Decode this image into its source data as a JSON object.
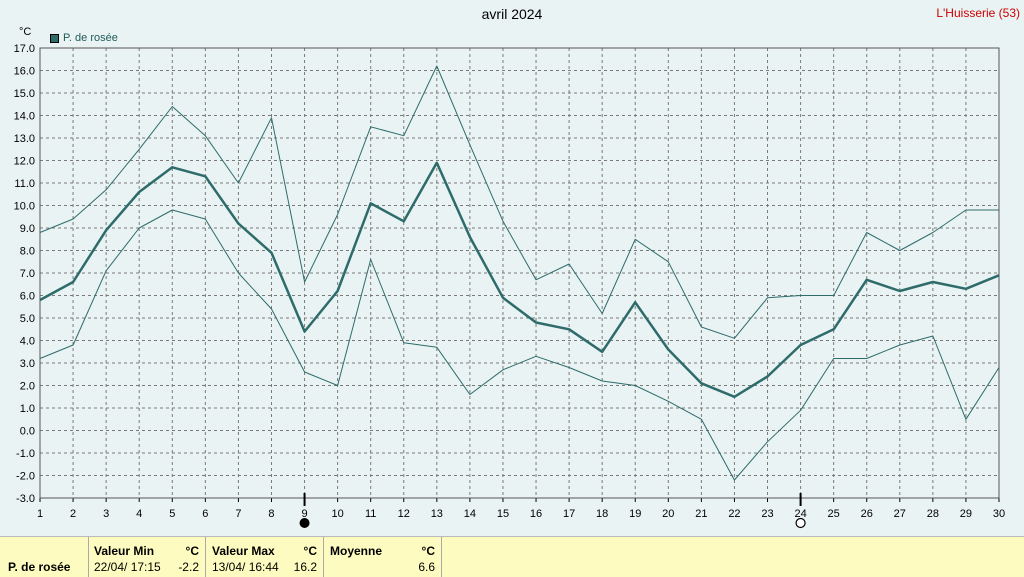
{
  "title": "avril 2024",
  "station": "L'Huisserie (53)",
  "unit": "°C",
  "legend_label": "P. de rosée",
  "colors": {
    "series": "#2e6b6b",
    "grid": "#7a7a7a",
    "background": "#eaf3f3",
    "footer": "#fdfbbf"
  },
  "markers": {
    "full_moon_day": 9,
    "new_moon_day": 24
  },
  "footer": {
    "row_label": "P. de rosée",
    "min_header": "Valeur Min",
    "min_unit": "°C",
    "min_date": "22/04/  17:15",
    "min_value": "-2.2",
    "max_header": "Valeur Max",
    "max_unit": "°C",
    "max_date": "13/04/  16:44",
    "max_value": "16.2",
    "mean_header": "Moyenne",
    "mean_unit": "°C",
    "mean_value": "6.6"
  },
  "chart_data": {
    "type": "line",
    "title": "avril 2024",
    "ylabel": "°C",
    "x": [
      1,
      2,
      3,
      4,
      5,
      6,
      7,
      8,
      9,
      10,
      11,
      12,
      13,
      14,
      15,
      16,
      17,
      18,
      19,
      20,
      21,
      22,
      23,
      24,
      25,
      26,
      27,
      28,
      29,
      30
    ],
    "ylim": [
      -3.0,
      17.0
    ],
    "yticks": [
      -3.0,
      -2.0,
      -1.0,
      0.0,
      1.0,
      2.0,
      3.0,
      4.0,
      5.0,
      6.0,
      7.0,
      8.0,
      9.0,
      10.0,
      11.0,
      12.0,
      13.0,
      14.0,
      15.0,
      16.0,
      17.0
    ],
    "grid": true,
    "legend_position": "top-left",
    "series": [
      {
        "name": "P. de rosée",
        "role": "max",
        "values": [
          8.8,
          9.4,
          10.7,
          12.5,
          14.4,
          13.1,
          11.0,
          13.9,
          6.6,
          9.6,
          13.5,
          13.1,
          16.2,
          12.7,
          9.3,
          6.7,
          7.4,
          5.2,
          8.5,
          7.5,
          4.6,
          4.1,
          5.9,
          6.0,
          6.0,
          8.8,
          8.0,
          8.8,
          9.8,
          9.8
        ]
      },
      {
        "name": "P. de rosée",
        "role": "mean",
        "values": [
          5.8,
          6.6,
          8.9,
          10.6,
          11.7,
          11.3,
          9.2,
          7.9,
          4.4,
          6.2,
          10.1,
          9.3,
          11.9,
          8.6,
          5.9,
          4.8,
          4.5,
          3.5,
          5.7,
          3.6,
          2.1,
          1.5,
          2.4,
          3.8,
          4.5,
          6.7,
          6.2,
          6.6,
          6.3,
          6.9
        ]
      },
      {
        "name": "P. de rosée",
        "role": "min",
        "values": [
          3.2,
          3.8,
          7.1,
          9.0,
          9.8,
          9.4,
          7.0,
          5.4,
          2.6,
          2.0,
          7.6,
          3.9,
          3.7,
          1.6,
          2.7,
          3.3,
          2.8,
          2.2,
          2.0,
          1.3,
          0.5,
          -2.2,
          -0.5,
          0.9,
          3.2,
          3.2,
          3.8,
          4.2,
          0.5,
          2.8
        ]
      }
    ]
  }
}
